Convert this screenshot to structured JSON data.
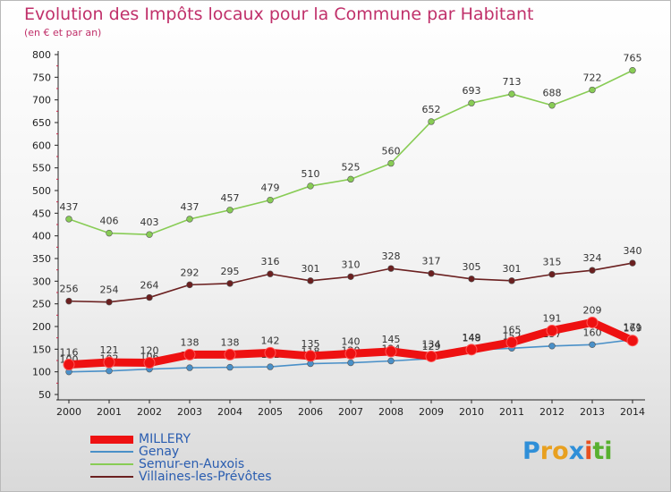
{
  "header": {
    "title": "Evolution des Impôts locaux pour la Commune par Habitant",
    "subtitle": "(en € et par an)"
  },
  "chart_data": {
    "type": "line",
    "title": "Evolution des Impôts locaux pour la Commune par Habitant",
    "subtitle": "(en € et par an)",
    "x": [
      2000,
      2001,
      2002,
      2003,
      2004,
      2005,
      2006,
      2007,
      2008,
      2009,
      2010,
      2011,
      2012,
      2013,
      2014
    ],
    "ylim": [
      50,
      800
    ],
    "yticks": [
      50,
      100,
      150,
      200,
      250,
      300,
      350,
      400,
      450,
      500,
      550,
      600,
      650,
      700,
      750,
      800
    ],
    "grid": false,
    "legend_position": "bottom-left",
    "series": [
      {
        "name": "MILLERY",
        "color": "#ee1111",
        "values": [
          116,
          121,
          120,
          138,
          138,
          142,
          135,
          140,
          145,
          134,
          149,
          165,
          191,
          209,
          169
        ]
      },
      {
        "name": "Genay",
        "color": "#4a90c8",
        "values": [
          100,
          102,
          106,
          109,
          110,
          111,
          118,
          120,
          124,
          129,
          148,
          152,
          157,
          160,
          171
        ]
      },
      {
        "name": "Semur-en-Auxois",
        "color": "#88cc55",
        "values": [
          437,
          406,
          403,
          437,
          457,
          479,
          510,
          525,
          560,
          652,
          693,
          713,
          688,
          722,
          765
        ]
      },
      {
        "name": "Villaines-les-Prévôtes",
        "color": "#6b2020",
        "values": [
          256,
          254,
          264,
          292,
          295,
          316,
          301,
          310,
          328,
          317,
          305,
          301,
          315,
          324,
          340
        ]
      }
    ]
  },
  "logo": {
    "letters": [
      "P",
      "r",
      "o",
      "x",
      "i",
      "t",
      "i"
    ],
    "colors": [
      "#2f8fd8",
      "#e8a020",
      "#e8a020",
      "#2f8fd8",
      "#e85020",
      "#58b030",
      "#58b030"
    ]
  }
}
